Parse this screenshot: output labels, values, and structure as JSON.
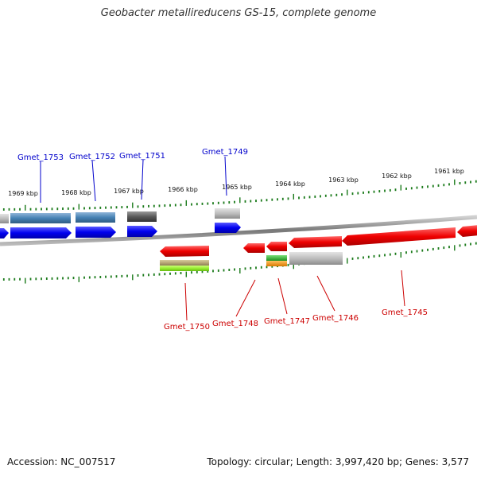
{
  "title": "Geobacter metallireducens GS-15, complete genome",
  "footer": {
    "accession": "Accession: NC_007517",
    "summary": "Topology: circular; Length: 3,997,420 bp; Genes: 3,577"
  },
  "colors": {
    "backbone": "#8a8a8a",
    "tick": "#1a7a1a",
    "forward_label": "#0000cc",
    "reverse_label": "#cc0000",
    "forward_gene": "#0000ee",
    "reverse_gene": "#ee0000",
    "steelblue_feature": "#4682b4",
    "gray_feature": "#aaaaaa",
    "darkgray_feature": "#555555",
    "olive_feature": "#b8a878",
    "lime_feature": "#99ee33",
    "green_feature": "#33bb33",
    "orange_feature": "#ee9911"
  },
  "scale_labels": [
    "1969 kbp",
    "1968 kbp",
    "1967 kbp",
    "1966 kbp",
    "1965 kbp",
    "1964 kbp",
    "1963 kbp",
    "1962 kbp",
    "1961 kbp"
  ],
  "forward_genes": [
    "Gmet_1753",
    "Gmet_1752",
    "Gmet_1751",
    "Gmet_1749"
  ],
  "reverse_genes": [
    "Gmet_1750",
    "Gmet_1748",
    "Gmet_1747",
    "Gmet_1746",
    "Gmet_1745"
  ]
}
